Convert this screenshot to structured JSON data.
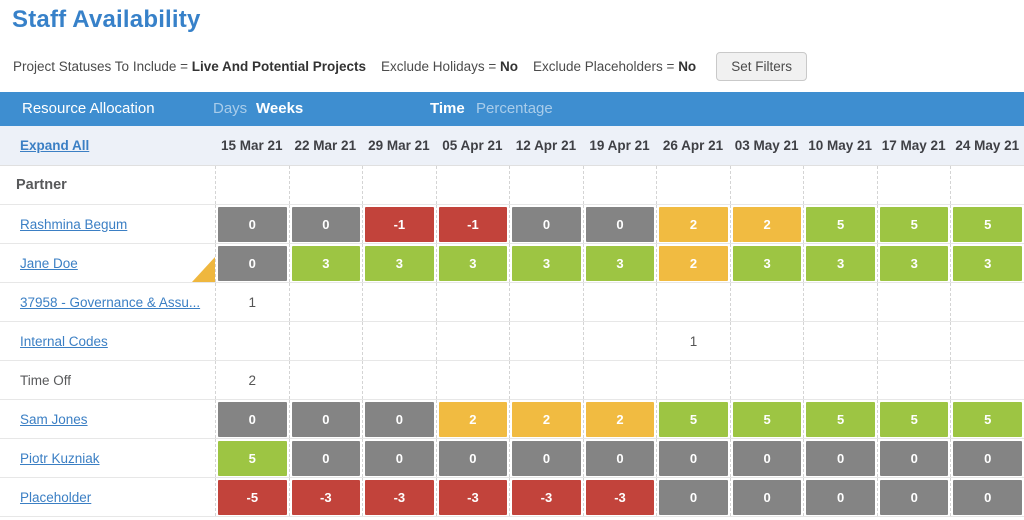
{
  "page": {
    "title": "Staff Availability"
  },
  "filters": {
    "segments": [
      {
        "label": "Project Statuses To Include = ",
        "value": "Live And Potential Projects"
      },
      {
        "label": "Exclude Holidays = ",
        "value": "No"
      },
      {
        "label": "Exclude Placeholders = ",
        "value": "No"
      }
    ],
    "set_filters_label": "Set Filters"
  },
  "toolbar": {
    "title": "Resource Allocation",
    "granularity": {
      "options": [
        "Days",
        "Weeks"
      ],
      "selected": "Weeks"
    },
    "mode": {
      "options": [
        "Time",
        "Percentage"
      ],
      "selected": "Time"
    }
  },
  "table": {
    "expand_all_label": "Expand All",
    "date_columns": [
      "15 Mar 21",
      "22 Mar 21",
      "29 Mar 21",
      "05 Apr 21",
      "12 Apr 21",
      "19 Apr 21",
      "26 Apr 21",
      "03 May 21",
      "10 May 21",
      "17 May 21",
      "24 May 21"
    ],
    "rows": [
      {
        "type": "group",
        "name": "Partner",
        "link": false,
        "marker": false,
        "cells": [
          {
            "v": "",
            "c": "empty"
          },
          {
            "v": "",
            "c": "empty"
          },
          {
            "v": "",
            "c": "empty"
          },
          {
            "v": "",
            "c": "empty"
          },
          {
            "v": "",
            "c": "empty"
          },
          {
            "v": "",
            "c": "empty"
          },
          {
            "v": "",
            "c": "empty"
          },
          {
            "v": "",
            "c": "empty"
          },
          {
            "v": "",
            "c": "empty"
          },
          {
            "v": "",
            "c": "empty"
          },
          {
            "v": "",
            "c": "empty"
          }
        ]
      },
      {
        "type": "person",
        "name": "Rashmina Begum",
        "link": true,
        "marker": false,
        "cells": [
          {
            "v": "0",
            "c": "gray"
          },
          {
            "v": "0",
            "c": "gray"
          },
          {
            "v": "-1",
            "c": "red"
          },
          {
            "v": "-1",
            "c": "red"
          },
          {
            "v": "0",
            "c": "gray"
          },
          {
            "v": "0",
            "c": "gray"
          },
          {
            "v": "2",
            "c": "yellow"
          },
          {
            "v": "2",
            "c": "yellow"
          },
          {
            "v": "5",
            "c": "green"
          },
          {
            "v": "5",
            "c": "green"
          },
          {
            "v": "5",
            "c": "green"
          }
        ]
      },
      {
        "type": "person",
        "name": "Jane Doe",
        "link": true,
        "marker": true,
        "cells": [
          {
            "v": "0",
            "c": "gray"
          },
          {
            "v": "3",
            "c": "green"
          },
          {
            "v": "3",
            "c": "green"
          },
          {
            "v": "3",
            "c": "green"
          },
          {
            "v": "3",
            "c": "green"
          },
          {
            "v": "3",
            "c": "green"
          },
          {
            "v": "2",
            "c": "yellow"
          },
          {
            "v": "3",
            "c": "green"
          },
          {
            "v": "3",
            "c": "green"
          },
          {
            "v": "3",
            "c": "green"
          },
          {
            "v": "3",
            "c": "green"
          }
        ]
      },
      {
        "type": "project",
        "name": "37958 - Governance & Assu...",
        "link": true,
        "marker": false,
        "cells": [
          {
            "v": "1",
            "c": "plain"
          },
          {
            "v": "",
            "c": "empty"
          },
          {
            "v": "",
            "c": "empty"
          },
          {
            "v": "",
            "c": "empty"
          },
          {
            "v": "",
            "c": "empty"
          },
          {
            "v": "",
            "c": "empty"
          },
          {
            "v": "",
            "c": "empty"
          },
          {
            "v": "",
            "c": "empty"
          },
          {
            "v": "",
            "c": "empty"
          },
          {
            "v": "",
            "c": "empty"
          },
          {
            "v": "",
            "c": "empty"
          }
        ]
      },
      {
        "type": "project",
        "name": "Internal Codes",
        "link": true,
        "marker": false,
        "cells": [
          {
            "v": "",
            "c": "empty"
          },
          {
            "v": "",
            "c": "empty"
          },
          {
            "v": "",
            "c": "empty"
          },
          {
            "v": "",
            "c": "empty"
          },
          {
            "v": "",
            "c": "empty"
          },
          {
            "v": "",
            "c": "empty"
          },
          {
            "v": "1",
            "c": "plain"
          },
          {
            "v": "",
            "c": "empty"
          },
          {
            "v": "",
            "c": "empty"
          },
          {
            "v": "",
            "c": "empty"
          },
          {
            "v": "",
            "c": "empty"
          }
        ]
      },
      {
        "type": "project",
        "name": "Time Off",
        "link": false,
        "marker": false,
        "cells": [
          {
            "v": "2",
            "c": "plain"
          },
          {
            "v": "",
            "c": "empty"
          },
          {
            "v": "",
            "c": "empty"
          },
          {
            "v": "",
            "c": "empty"
          },
          {
            "v": "",
            "c": "empty"
          },
          {
            "v": "",
            "c": "empty"
          },
          {
            "v": "",
            "c": "empty"
          },
          {
            "v": "",
            "c": "empty"
          },
          {
            "v": "",
            "c": "empty"
          },
          {
            "v": "",
            "c": "empty"
          },
          {
            "v": "",
            "c": "empty"
          }
        ]
      },
      {
        "type": "person",
        "name": "Sam Jones",
        "link": true,
        "marker": false,
        "cells": [
          {
            "v": "0",
            "c": "gray"
          },
          {
            "v": "0",
            "c": "gray"
          },
          {
            "v": "0",
            "c": "gray"
          },
          {
            "v": "2",
            "c": "yellow"
          },
          {
            "v": "2",
            "c": "yellow"
          },
          {
            "v": "2",
            "c": "yellow"
          },
          {
            "v": "5",
            "c": "green"
          },
          {
            "v": "5",
            "c": "green"
          },
          {
            "v": "5",
            "c": "green"
          },
          {
            "v": "5",
            "c": "green"
          },
          {
            "v": "5",
            "c": "green"
          }
        ]
      },
      {
        "type": "person",
        "name": "Piotr Kuzniak",
        "link": true,
        "marker": false,
        "cells": [
          {
            "v": "5",
            "c": "green"
          },
          {
            "v": "0",
            "c": "gray"
          },
          {
            "v": "0",
            "c": "gray"
          },
          {
            "v": "0",
            "c": "gray"
          },
          {
            "v": "0",
            "c": "gray"
          },
          {
            "v": "0",
            "c": "gray"
          },
          {
            "v": "0",
            "c": "gray"
          },
          {
            "v": "0",
            "c": "gray"
          },
          {
            "v": "0",
            "c": "gray"
          },
          {
            "v": "0",
            "c": "gray"
          },
          {
            "v": "0",
            "c": "gray"
          }
        ]
      },
      {
        "type": "person",
        "name": "Placeholder",
        "link": true,
        "marker": false,
        "cells": [
          {
            "v": "-5",
            "c": "red"
          },
          {
            "v": "-3",
            "c": "red"
          },
          {
            "v": "-3",
            "c": "red"
          },
          {
            "v": "-3",
            "c": "red"
          },
          {
            "v": "-3",
            "c": "red"
          },
          {
            "v": "-3",
            "c": "red"
          },
          {
            "v": "0",
            "c": "gray"
          },
          {
            "v": "0",
            "c": "gray"
          },
          {
            "v": "0",
            "c": "gray"
          },
          {
            "v": "0",
            "c": "gray"
          },
          {
            "v": "0",
            "c": "gray"
          }
        ]
      }
    ]
  },
  "colors": {
    "gray": "#848484",
    "red": "#c2433b",
    "yellow": "#f1bb41",
    "green": "#9dc543",
    "marker": "#efb73e",
    "accent_blue": "#3e8ed0"
  }
}
